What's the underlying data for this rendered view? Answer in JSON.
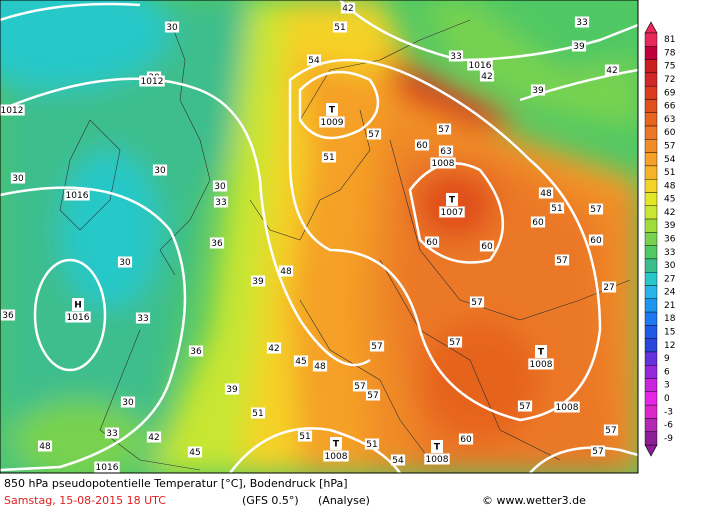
{
  "caption": {
    "title": "850 hPa pseudopotentielle Temperatur [°C], Bodendruck [hPa]",
    "date": "Samstag, 15-08-2015  18 UTC",
    "model": "(GFS 0.5°)",
    "analysis": "(Analyse)",
    "copyright": "© www.wetter3.de"
  },
  "colorbar": {
    "values": [
      81,
      78,
      75,
      72,
      69,
      66,
      63,
      60,
      57,
      54,
      51,
      48,
      45,
      42,
      39,
      36,
      33,
      30,
      27,
      24,
      21,
      18,
      15,
      12,
      9,
      6,
      3,
      0,
      -3,
      -6,
      -9
    ],
    "colors": [
      "#e6285a",
      "#c0003c",
      "#c81e1e",
      "#d22828",
      "#dc3c1e",
      "#e0501e",
      "#e6641e",
      "#eb7828",
      "#f08c28",
      "#f5a028",
      "#f5b428",
      "#f5d228",
      "#e6e628",
      "#c8e632",
      "#a0dc3c",
      "#78d250",
      "#50c864",
      "#3cbe8c",
      "#28c8c8",
      "#28b4e6",
      "#1e96f0",
      "#1e78f0",
      "#1e5ae6",
      "#2846dc",
      "#6432dc",
      "#9628dc",
      "#c828dc",
      "#e628e6",
      "#dc28c8",
      "#b428b4",
      "#8c1e96"
    ]
  },
  "pressure_centers": [
    {
      "symbol": "H",
      "value": "1016"
    },
    {
      "symbol": "T",
      "value": "1009"
    },
    {
      "symbol": "T",
      "value": "1007"
    },
    {
      "symbol": "T",
      "value": "1008"
    },
    {
      "symbol": "T",
      "value": "1008"
    },
    {
      "symbol": "T",
      "value": "1008"
    }
  ],
  "isobar_labels": [
    "1012",
    "1012",
    "1016",
    "1016",
    "1008",
    "1016",
    "1008"
  ],
  "contour_labels": [
    "30",
    "30",
    "30",
    "30",
    "30",
    "33",
    "36",
    "30",
    "36",
    "33",
    "36",
    "39",
    "30",
    "33",
    "42",
    "48",
    "45",
    "42",
    "45",
    "48",
    "39",
    "48",
    "51",
    "57",
    "57",
    "57",
    "57",
    "60",
    "60",
    "60",
    "63",
    "57",
    "57",
    "60",
    "51",
    "54",
    "51",
    "42",
    "33",
    "39",
    "42",
    "39",
    "48",
    "51",
    "57",
    "60",
    "57",
    "27",
    "57",
    "60",
    "57",
    "54",
    "51",
    "51",
    "57",
    "33",
    "42",
    "57"
  ]
}
